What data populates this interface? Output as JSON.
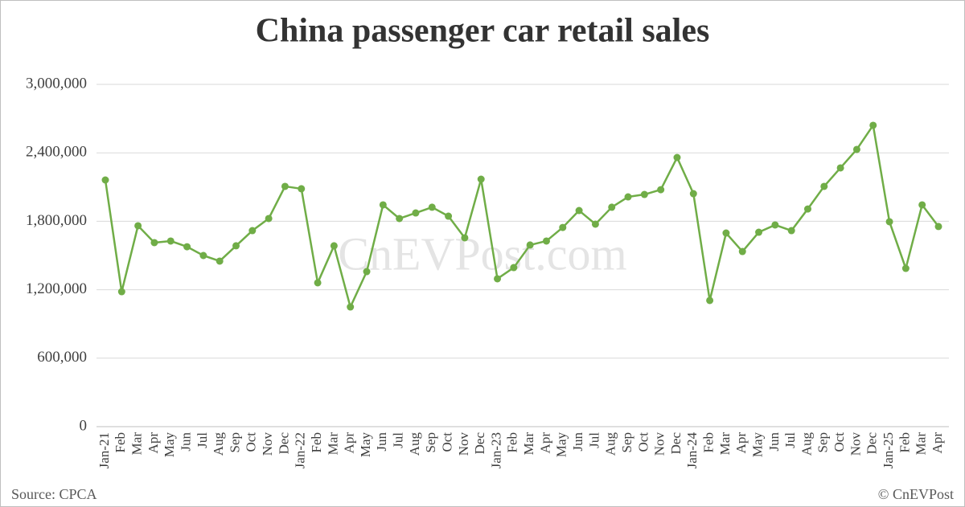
{
  "chart_data": {
    "type": "line",
    "title": "China passenger car retail sales",
    "categories": [
      "Jan-21",
      "Feb",
      "Mar",
      "Apr",
      "May",
      "Jun",
      "Jul",
      "Aug",
      "Sep",
      "Oct",
      "Nov",
      "Dec",
      "Jan-22",
      "Feb",
      "Mar",
      "Apr",
      "May",
      "Jun",
      "Jul",
      "Aug",
      "Sep",
      "Oct",
      "Nov",
      "Dec",
      "Jan-23",
      "Feb",
      "Mar",
      "Apr",
      "May",
      "Jun",
      "Jul",
      "Aug",
      "Sep",
      "Oct",
      "Nov",
      "Dec",
      "Jan-24",
      "Feb",
      "Mar",
      "Apr",
      "May",
      "Jun",
      "Jul",
      "Aug",
      "Sep",
      "Oct",
      "Nov",
      "Dec",
      "Jan-25",
      "Feb",
      "Mar",
      "Apr"
    ],
    "values": [
      2162000,
      1183000,
      1761000,
      1613000,
      1627000,
      1577000,
      1500000,
      1451000,
      1585000,
      1718000,
      1824000,
      2106000,
      2085000,
      1261000,
      1585000,
      1049000,
      1359000,
      1944000,
      1824000,
      1873000,
      1923000,
      1845000,
      1655000,
      2169000,
      1296000,
      1394000,
      1592000,
      1627000,
      1746000,
      1894000,
      1775000,
      1923000,
      2014000,
      2035000,
      2077000,
      2359000,
      2042000,
      1106000,
      1697000,
      1535000,
      1704000,
      1768000,
      1718000,
      1908000,
      2106000,
      2268000,
      2430000,
      2641000,
      1796000,
      1387000,
      1944000,
      1754000
    ],
    "color": "#70ad47",
    "ylim": [
      0,
      3000000
    ],
    "yticks": [
      0,
      {
        "value": 600000,
        "label": "600,000"
      },
      {
        "value": 1200000,
        "label": "1,200,000"
      },
      {
        "value": 1800000,
        "label": "1,800,000"
      },
      {
        "value": 2400000,
        "label": "2,400,000"
      },
      {
        "value": 3000000,
        "label": "3,000,000"
      }
    ],
    "grid": true,
    "watermark": "CnEVPost.com",
    "source": "Source: CPCA",
    "credit": "© CnEVPost"
  }
}
